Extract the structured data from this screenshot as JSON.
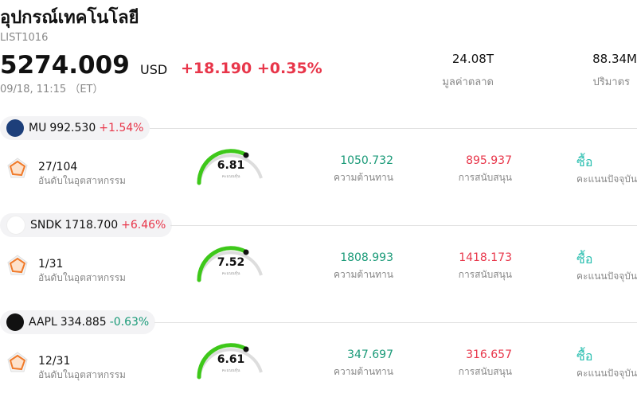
{
  "header": {
    "title": "อุปกรณ์เทคโนโลยี",
    "code": "LIST1016",
    "price": "5274.009",
    "currency": "USD",
    "change": "+18.190",
    "change_pct": "+0.35%",
    "time": "09/18, 11:15 （ET）",
    "market_cap": "24.08T",
    "market_cap_label": "มูลค่าตลาด",
    "volume": "88.34M",
    "volume_label": "ปริมาตร"
  },
  "stocks": [
    {
      "ticker": "MU",
      "price": "992.530",
      "change": "+1.54%",
      "rank": "27/104",
      "rank_label": "อันดับในอุตสาหกรรม",
      "score": "6.81",
      "score_label": "คะแนนหุ้น",
      "resistance": "1050.732",
      "resistance_label": "ความต้านทาน",
      "support": "895.937",
      "support_label": "การสนับสนุน",
      "rating": "ซื้อ",
      "rating_label": "คะแนนปัจจุบัน"
    },
    {
      "ticker": "SNDK",
      "price": "1718.700",
      "change": "+6.46%",
      "rank": "1/31",
      "rank_label": "อันดับในอุตสาหกรรม",
      "score": "7.52",
      "score_label": "คะแนนหุ้น",
      "resistance": "1808.993",
      "resistance_label": "ความต้านทาน",
      "support": "1418.173",
      "support_label": "การสนับสนุน",
      "rating": "ซื้อ",
      "rating_label": "คะแนนปัจจุบัน"
    },
    {
      "ticker": "AAPL",
      "price": "334.885",
      "change": "-0.63%",
      "rank": "12/31",
      "rank_label": "อันดับในอุตสาหกรรม",
      "score": "6.61",
      "score_label": "คะแนนหุ้น",
      "resistance": "347.697",
      "resistance_label": "ความต้านทาน",
      "support": "316.657",
      "support_label": "การสนับสนุน",
      "rating": "ซื้อ",
      "rating_label": "คะแนนปัจจุบัน"
    }
  ]
}
